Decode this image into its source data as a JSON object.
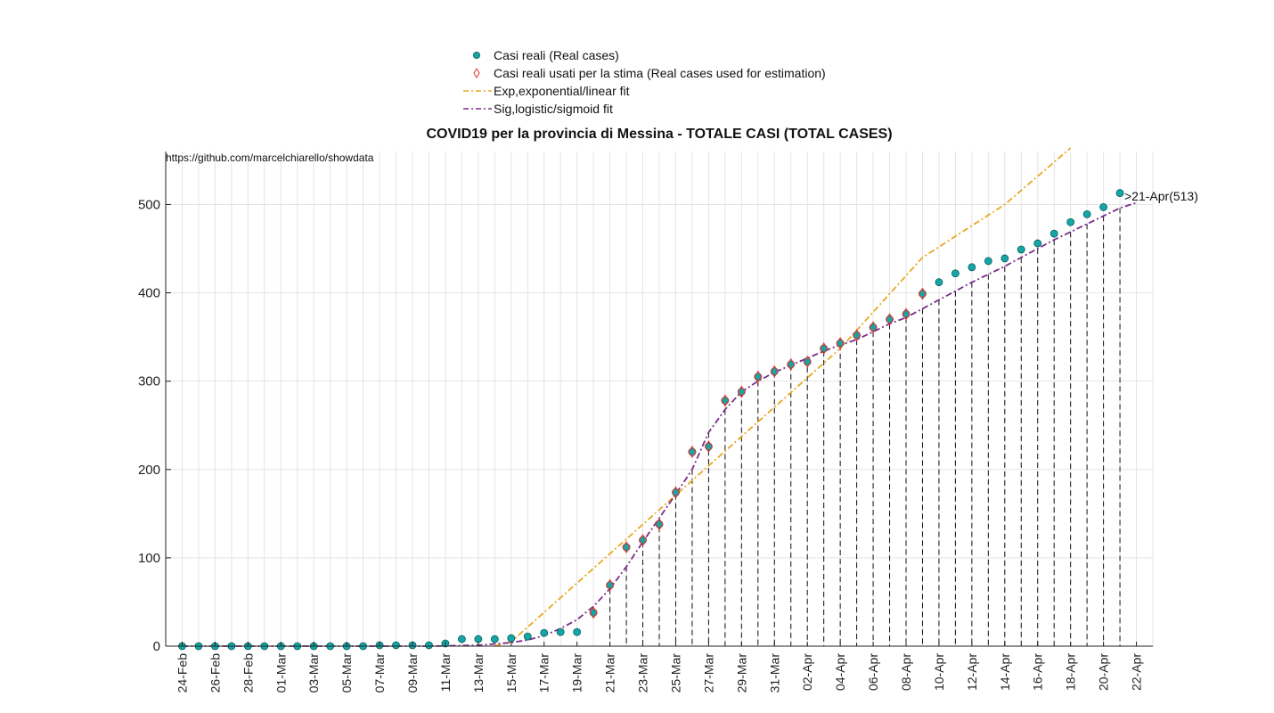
{
  "chart_data": {
    "type": "scatter",
    "title": "COVID19 per la provincia di Messina - TOTALE CASI (TOTAL CASES)",
    "source_text": "https://github.com/marcelchiarello/showdata",
    "annotation": ">21-Apr(513)",
    "xlabel": "",
    "ylabel": "",
    "ylim": [
      0,
      560
    ],
    "yticks": [
      0,
      100,
      200,
      300,
      400,
      500
    ],
    "xlim": [
      "2020-02-23",
      "2020-04-23"
    ],
    "xtick_labels": [
      "24-Feb",
      "26-Feb",
      "28-Feb",
      "01-Mar",
      "03-Mar",
      "05-Mar",
      "07-Mar",
      "09-Mar",
      "11-Mar",
      "13-Mar",
      "15-Mar",
      "17-Mar",
      "19-Mar",
      "21-Mar",
      "23-Mar",
      "25-Mar",
      "27-Mar",
      "29-Mar",
      "31-Mar",
      "02-Apr",
      "04-Apr",
      "06-Apr",
      "08-Apr",
      "10-Apr",
      "12-Apr",
      "14-Apr",
      "16-Apr",
      "18-Apr",
      "20-Apr",
      "22-Apr"
    ],
    "grid": true,
    "legend_position": "top-center",
    "colors": {
      "real": "#14a6a6",
      "real_edge": "#0b5c5c",
      "estimation": "#e53935",
      "exp_fit": "#e8a820",
      "sig_fit": "#7b2d8b"
    },
    "series": [
      {
        "name": "Casi reali (Real cases)",
        "x": [
          "2020-02-24",
          "2020-02-25",
          "2020-02-26",
          "2020-02-27",
          "2020-02-28",
          "2020-02-29",
          "2020-03-01",
          "2020-03-02",
          "2020-03-03",
          "2020-03-04",
          "2020-03-05",
          "2020-03-06",
          "2020-03-07",
          "2020-03-08",
          "2020-03-09",
          "2020-03-10",
          "2020-03-11",
          "2020-03-12",
          "2020-03-13",
          "2020-03-14",
          "2020-03-15",
          "2020-03-16",
          "2020-03-17",
          "2020-03-18",
          "2020-03-19",
          "2020-03-20",
          "2020-03-21",
          "2020-03-22",
          "2020-03-23",
          "2020-03-24",
          "2020-03-25",
          "2020-03-26",
          "2020-03-27",
          "2020-03-28",
          "2020-03-29",
          "2020-03-30",
          "2020-03-31",
          "2020-04-01",
          "2020-04-02",
          "2020-04-03",
          "2020-04-04",
          "2020-04-05",
          "2020-04-06",
          "2020-04-07",
          "2020-04-08",
          "2020-04-09",
          "2020-04-10",
          "2020-04-11",
          "2020-04-12",
          "2020-04-13",
          "2020-04-14",
          "2020-04-15",
          "2020-04-16",
          "2020-04-17",
          "2020-04-18",
          "2020-04-19",
          "2020-04-20",
          "2020-04-21"
        ],
        "y": [
          0,
          0,
          0,
          0,
          0,
          0,
          0,
          0,
          0,
          0,
          0,
          0,
          1,
          1,
          1,
          1,
          3,
          8,
          8,
          8,
          9,
          11,
          15,
          16,
          16,
          38,
          69,
          112,
          120,
          138,
          174,
          220,
          226,
          278,
          288,
          305,
          311,
          319,
          322,
          337,
          343,
          352,
          361,
          370,
          376,
          399,
          412,
          422,
          429,
          436,
          439,
          449,
          456,
          467,
          480,
          489,
          497,
          513
        ]
      },
      {
        "name": "Casi reali usati per la stima (Real cases used for estimation)",
        "x": [
          "2020-03-20",
          "2020-03-21",
          "2020-03-22",
          "2020-03-23",
          "2020-03-24",
          "2020-03-25",
          "2020-03-26",
          "2020-03-27",
          "2020-03-28",
          "2020-03-29",
          "2020-03-30",
          "2020-03-31",
          "2020-04-01",
          "2020-04-02",
          "2020-04-03",
          "2020-04-04",
          "2020-04-05",
          "2020-04-06",
          "2020-04-07",
          "2020-04-08",
          "2020-04-09"
        ],
        "y": [
          38,
          69,
          112,
          120,
          138,
          174,
          220,
          226,
          278,
          288,
          305,
          311,
          319,
          322,
          337,
          343,
          352,
          361,
          370,
          376,
          399
        ]
      },
      {
        "name": "Exp,exponential/linear fit",
        "x": [
          "2020-03-14",
          "2020-03-15",
          "2020-03-20",
          "2020-03-25",
          "2020-03-30",
          "2020-04-04",
          "2020-04-09",
          "2020-04-14",
          "2020-04-18"
        ],
        "y": [
          0,
          5,
          88,
          171,
          254,
          337,
          440,
          500,
          570
        ]
      },
      {
        "name": "Sig,logistic/sigmoid fit",
        "x": [
          "2020-02-24",
          "2020-03-01",
          "2020-03-06",
          "2020-03-10",
          "2020-03-13",
          "2020-03-15",
          "2020-03-16",
          "2020-03-17",
          "2020-03-18",
          "2020-03-19",
          "2020-03-20",
          "2020-03-21",
          "2020-03-22",
          "2020-03-23",
          "2020-03-24",
          "2020-03-25",
          "2020-03-26",
          "2020-03-27",
          "2020-03-28",
          "2020-03-29",
          "2020-03-30",
          "2020-03-31",
          "2020-04-01",
          "2020-04-02",
          "2020-04-03",
          "2020-04-04",
          "2020-04-05",
          "2020-04-06",
          "2020-04-07",
          "2020-04-08",
          "2020-04-09",
          "2020-04-10",
          "2020-04-11",
          "2020-04-12",
          "2020-04-13",
          "2020-04-14",
          "2020-04-15",
          "2020-04-16",
          "2020-04-17",
          "2020-04-18",
          "2020-04-19",
          "2020-04-20",
          "2020-04-21",
          "2020-04-22"
        ],
        "y": [
          0,
          0,
          0,
          0,
          1,
          4,
          7,
          12,
          20,
          30,
          45,
          65,
          90,
          118,
          145,
          172,
          200,
          242,
          268,
          288,
          300,
          310,
          318,
          326,
          334,
          341,
          347,
          356,
          365,
          372,
          382,
          392,
          402,
          412,
          421,
          430,
          440,
          450,
          460,
          469,
          478,
          487,
          496,
          502
        ]
      }
    ],
    "projection_marker_x": [
      "2020-03-21",
      "2020-03-22",
      "2020-03-23",
      "2020-03-24",
      "2020-03-25",
      "2020-03-26",
      "2020-03-27",
      "2020-03-28",
      "2020-03-29",
      "2020-03-30",
      "2020-03-31",
      "2020-04-01",
      "2020-04-02",
      "2020-04-03",
      "2020-04-04",
      "2020-04-05",
      "2020-04-06",
      "2020-04-07",
      "2020-04-08",
      "2020-04-09",
      "2020-04-10",
      "2020-04-11",
      "2020-04-12",
      "2020-04-13",
      "2020-04-14",
      "2020-04-15",
      "2020-04-16",
      "2020-04-17",
      "2020-04-18",
      "2020-04-19",
      "2020-04-20",
      "2020-04-21"
    ]
  }
}
